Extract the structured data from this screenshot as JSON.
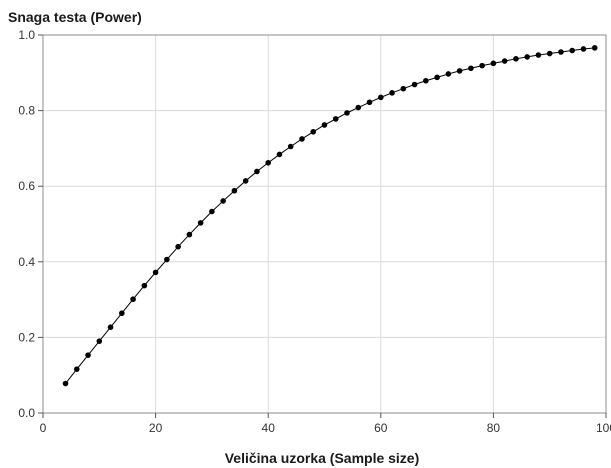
{
  "chart_data": {
    "type": "line",
    "title": "",
    "ylabel": "Snaga testa (Power)",
    "xlabel": "Veličina uzorka (Sample size)",
    "xlim": [
      0,
      100
    ],
    "ylim": [
      0,
      1.0
    ],
    "x_ticks": [
      0,
      20,
      40,
      60,
      80,
      100
    ],
    "y_ticks": [
      0.0,
      0.2,
      0.4,
      0.6,
      0.8,
      1.0
    ],
    "x_tick_labels": [
      "0",
      "20",
      "40",
      "60",
      "80",
      "100"
    ],
    "y_tick_labels": [
      "0.0",
      "0.2",
      "0.4",
      "0.6",
      "0.8",
      "1.0"
    ],
    "grid": true,
    "legend": "none",
    "series_color": "#000000",
    "grid_color": "#dcdcdc",
    "x": [
      4,
      6,
      8,
      10,
      12,
      14,
      16,
      18,
      20,
      22,
      24,
      26,
      28,
      30,
      32,
      34,
      36,
      38,
      40,
      42,
      44,
      46,
      48,
      50,
      52,
      54,
      56,
      58,
      60,
      62,
      64,
      66,
      68,
      70,
      72,
      74,
      76,
      78,
      80,
      82,
      84,
      86,
      88,
      90,
      92,
      94,
      96,
      98
    ],
    "values": [
      0.078,
      0.116,
      0.153,
      0.19,
      0.227,
      0.264,
      0.301,
      0.337,
      0.372,
      0.406,
      0.44,
      0.472,
      0.503,
      0.533,
      0.561,
      0.588,
      0.614,
      0.639,
      0.662,
      0.684,
      0.705,
      0.725,
      0.744,
      0.762,
      0.778,
      0.794,
      0.808,
      0.822,
      0.835,
      0.847,
      0.858,
      0.869,
      0.879,
      0.888,
      0.897,
      0.905,
      0.912,
      0.919,
      0.925,
      0.931,
      0.937,
      0.942,
      0.947,
      0.951,
      0.955,
      0.959,
      0.963,
      0.966
    ]
  }
}
